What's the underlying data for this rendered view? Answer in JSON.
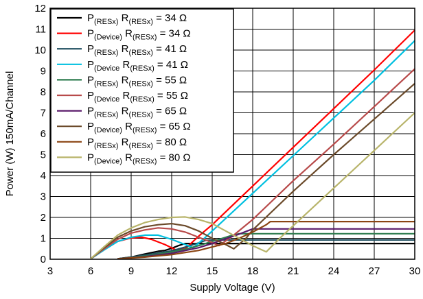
{
  "chart_data": {
    "type": "line",
    "xlabel": "Supply Voltage (V)",
    "ylabel": "Power (W) 150mA/Channel",
    "xlim": [
      3,
      30
    ],
    "ylim": [
      0,
      12
    ],
    "x_ticks": [
      3,
      6,
      9,
      12,
      15,
      18,
      21,
      24,
      27,
      30
    ],
    "y_ticks": [
      0,
      1,
      2,
      3,
      4,
      5,
      6,
      7,
      8,
      9,
      10,
      11,
      12
    ],
    "grid": true,
    "legend_placement": "top-left",
    "series": [
      {
        "legend": [
          "P",
          "(RESx)",
          " R",
          "(RESx)",
          " = 34 Ω"
        ],
        "color": "#000000",
        "points": [
          [
            8,
            0.02
          ],
          [
            9,
            0.1
          ],
          [
            10,
            0.25
          ],
          [
            11,
            0.38
          ],
          [
            11.5,
            0.42
          ],
          [
            12,
            0.52
          ],
          [
            12.5,
            0.65
          ],
          [
            13,
            0.75
          ],
          [
            14,
            0.75
          ],
          [
            30,
            0.75
          ]
        ]
      },
      {
        "legend": [
          "P",
          "(Device)",
          " R",
          "(RESx)",
          " = 34 Ω"
        ],
        "color": "#ff0000",
        "points": [
          [
            6,
            0.02
          ],
          [
            7,
            0.45
          ],
          [
            8,
            0.85
          ],
          [
            9,
            1.02
          ],
          [
            9.8,
            1.05
          ],
          [
            10.5,
            0.95
          ],
          [
            11.5,
            0.7
          ],
          [
            12.3,
            0.45
          ],
          [
            13,
            0.5
          ],
          [
            14,
            1.1
          ],
          [
            15,
            1.65
          ],
          [
            18,
            3.5
          ],
          [
            21,
            5.35
          ],
          [
            24,
            7.2
          ],
          [
            27,
            9.05
          ],
          [
            30,
            10.95
          ]
        ]
      },
      {
        "legend": [
          "P",
          "(RESx)",
          " R",
          "(RESx)",
          " = 41 Ω"
        ],
        "color": "#1f4e5f",
        "points": [
          [
            8,
            0.02
          ],
          [
            9,
            0.1
          ],
          [
            10,
            0.2
          ],
          [
            11,
            0.3
          ],
          [
            12,
            0.4
          ],
          [
            13,
            0.58
          ],
          [
            14,
            0.78
          ],
          [
            14.5,
            0.9
          ],
          [
            15,
            0.92
          ],
          [
            30,
            0.92
          ]
        ]
      },
      {
        "legend": [
          "P",
          "(Device",
          " R",
          "(RESx)",
          " = 41 Ω"
        ],
        "color": "#00c0e0",
        "points": [
          [
            6,
            0.02
          ],
          [
            7,
            0.45
          ],
          [
            8,
            0.85
          ],
          [
            9,
            1.05
          ],
          [
            10,
            1.15
          ],
          [
            11,
            1.15
          ],
          [
            12,
            0.95
          ],
          [
            13,
            0.7
          ],
          [
            13.6,
            0.55
          ],
          [
            14.5,
            1.05
          ],
          [
            15,
            1.35
          ],
          [
            18,
            3.15
          ],
          [
            21,
            4.95
          ],
          [
            24,
            6.75
          ],
          [
            27,
            8.55
          ],
          [
            30,
            10.45
          ]
        ]
      },
      {
        "legend": [
          "P",
          "(RESx)",
          " R",
          "(RESx)",
          " = 55 Ω"
        ],
        "color": "#2e7d4f",
        "points": [
          [
            8,
            0.02
          ],
          [
            10,
            0.15
          ],
          [
            12,
            0.35
          ],
          [
            13,
            0.48
          ],
          [
            14,
            0.65
          ],
          [
            15,
            0.85
          ],
          [
            16,
            1.05
          ],
          [
            16.5,
            1.15
          ],
          [
            17,
            1.22
          ],
          [
            30,
            1.22
          ]
        ]
      },
      {
        "legend": [
          "P",
          "(Device",
          " R",
          "(RESx)",
          " = 55 Ω"
        ],
        "color": "#b84a4a",
        "points": [
          [
            6,
            0.02
          ],
          [
            7,
            0.5
          ],
          [
            8,
            0.95
          ],
          [
            9,
            1.25
          ],
          [
            10,
            1.4
          ],
          [
            11,
            1.5
          ],
          [
            12,
            1.45
          ],
          [
            13,
            1.3
          ],
          [
            14,
            1.05
          ],
          [
            15,
            0.8
          ],
          [
            15.5,
            0.65
          ],
          [
            16.5,
            1.1
          ],
          [
            18,
            1.9
          ],
          [
            21,
            3.75
          ],
          [
            24,
            5.5
          ],
          [
            27,
            7.3
          ],
          [
            30,
            9.1
          ]
        ]
      },
      {
        "legend": [
          "P",
          "(RESx)",
          " R",
          "(RESx)",
          " = 65 Ω"
        ],
        "color": "#5a1a6a",
        "points": [
          [
            8,
            0.02
          ],
          [
            10,
            0.12
          ],
          [
            12,
            0.28
          ],
          [
            14,
            0.55
          ],
          [
            15,
            0.75
          ],
          [
            16,
            0.98
          ],
          [
            17,
            1.2
          ],
          [
            17.6,
            1.35
          ],
          [
            18,
            1.45
          ],
          [
            30,
            1.45
          ]
        ]
      },
      {
        "legend": [
          "P",
          "(Device)",
          " R",
          "(RESx)",
          " = 65 Ω"
        ],
        "color": "#6b4a2a",
        "points": [
          [
            6,
            0.02
          ],
          [
            7,
            0.55
          ],
          [
            8,
            1.05
          ],
          [
            9,
            1.35
          ],
          [
            10,
            1.55
          ],
          [
            11,
            1.65
          ],
          [
            12,
            1.7
          ],
          [
            13,
            1.6
          ],
          [
            14,
            1.35
          ],
          [
            15,
            1.0
          ],
          [
            16,
            0.7
          ],
          [
            16.6,
            0.5
          ],
          [
            17.5,
            1.0
          ],
          [
            18,
            1.4
          ],
          [
            21,
            3.25
          ],
          [
            24,
            5.0
          ],
          [
            27,
            6.7
          ],
          [
            30,
            8.4
          ]
        ]
      },
      {
        "legend": [
          "P",
          "(RESx)",
          " R",
          "(RESx)",
          " = 80 Ω"
        ],
        "color": "#8b4513",
        "points": [
          [
            8,
            0.02
          ],
          [
            10,
            0.1
          ],
          [
            12,
            0.22
          ],
          [
            14,
            0.42
          ],
          [
            16,
            0.75
          ],
          [
            17,
            1.0
          ],
          [
            18,
            1.3
          ],
          [
            19,
            1.65
          ],
          [
            19.3,
            1.8
          ],
          [
            30,
            1.8
          ]
        ]
      },
      {
        "legend": [
          "P",
          "(Device)",
          " R",
          "(RESx)",
          " = 80 Ω"
        ],
        "color": "#b8b46a",
        "points": [
          [
            6,
            0.02
          ],
          [
            7,
            0.6
          ],
          [
            8,
            1.15
          ],
          [
            9,
            1.5
          ],
          [
            10,
            1.75
          ],
          [
            11,
            1.9
          ],
          [
            12,
            2.0
          ],
          [
            13,
            2.02
          ],
          [
            14,
            1.9
          ],
          [
            15,
            1.7
          ],
          [
            16,
            1.35
          ],
          [
            17,
            1.0
          ],
          [
            18,
            0.65
          ],
          [
            19,
            0.35
          ],
          [
            20,
            1.0
          ],
          [
            21,
            1.6
          ],
          [
            24,
            3.4
          ],
          [
            27,
            5.2
          ],
          [
            30,
            7.0
          ]
        ]
      }
    ]
  }
}
